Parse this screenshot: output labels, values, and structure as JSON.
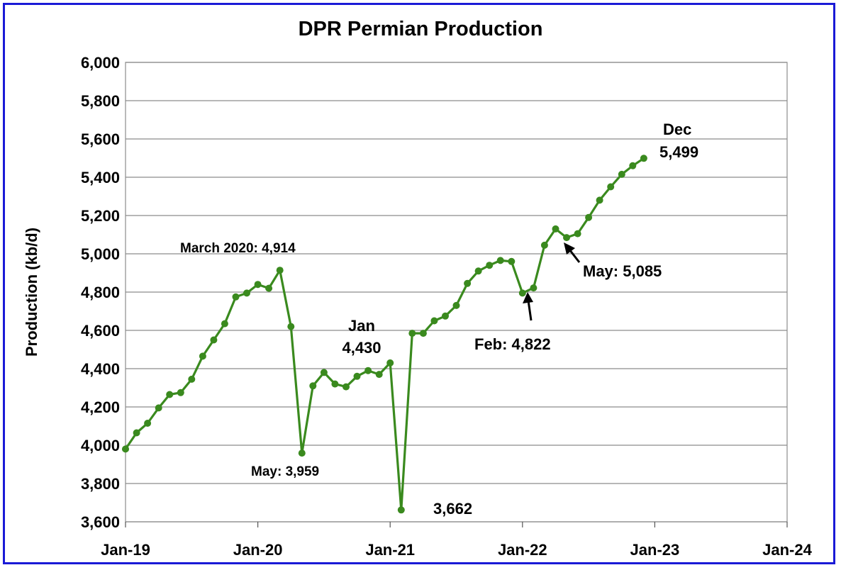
{
  "chart_data": {
    "type": "line",
    "title": "DPR Permian Production",
    "xlabel": "",
    "ylabel": "Production (kb/d)",
    "ylim": [
      3600,
      6000
    ],
    "ytick_step": 200,
    "ytick_labels": [
      "3,600",
      "3,800",
      "4,000",
      "4,200",
      "4,400",
      "4,600",
      "4,800",
      "5,000",
      "5,200",
      "5,400",
      "5,600",
      "5,800",
      "6,000"
    ],
    "xtick_labels": [
      "Jan-19",
      "Jan-20",
      "Jan-21",
      "Jan-22",
      "Jan-23",
      "Jan-24"
    ],
    "grid": true,
    "line_color": "#3a8a1e",
    "series": [
      {
        "name": "",
        "x": [
          "2019-01",
          "2019-02",
          "2019-03",
          "2019-04",
          "2019-05",
          "2019-06",
          "2019-07",
          "2019-08",
          "2019-09",
          "2019-10",
          "2019-11",
          "2019-12",
          "2020-01",
          "2020-02",
          "2020-03",
          "2020-04",
          "2020-05",
          "2020-06",
          "2020-07",
          "2020-08",
          "2020-09",
          "2020-10",
          "2020-11",
          "2020-12",
          "2021-01",
          "2021-02",
          "2021-03",
          "2021-04",
          "2021-05",
          "2021-06",
          "2021-07",
          "2021-08",
          "2021-09",
          "2021-10",
          "2021-11",
          "2021-12",
          "2022-01",
          "2022-02",
          "2022-03",
          "2022-04",
          "2022-05",
          "2022-06",
          "2022-07",
          "2022-08",
          "2022-09",
          "2022-10",
          "2022-11",
          "2022-12"
        ],
        "values": [
          3980,
          4065,
          4115,
          4195,
          4265,
          4275,
          4345,
          4465,
          4550,
          4635,
          4775,
          4795,
          4840,
          4820,
          4914,
          4620,
          3959,
          4310,
          4380,
          4320,
          4305,
          4360,
          4390,
          4370,
          4430,
          3662,
          4585,
          4585,
          4650,
          4675,
          4730,
          4845,
          4910,
          4940,
          4965,
          4960,
          4795,
          4822,
          5045,
          5130,
          5085,
          5105,
          5190,
          5280,
          5350,
          5415,
          5460,
          5499
        ]
      }
    ],
    "annotations": [
      {
        "text": "March 2020: 4,914"
      },
      {
        "text": "May: 3,959"
      },
      {
        "text_line1": "Jan",
        "text_line2": "4,430"
      },
      {
        "text": "3,662"
      },
      {
        "text": "Feb: 4,822"
      },
      {
        "text": "May: 5,085"
      },
      {
        "text_line1": "Dec",
        "text_line2": "5,499"
      }
    ]
  }
}
